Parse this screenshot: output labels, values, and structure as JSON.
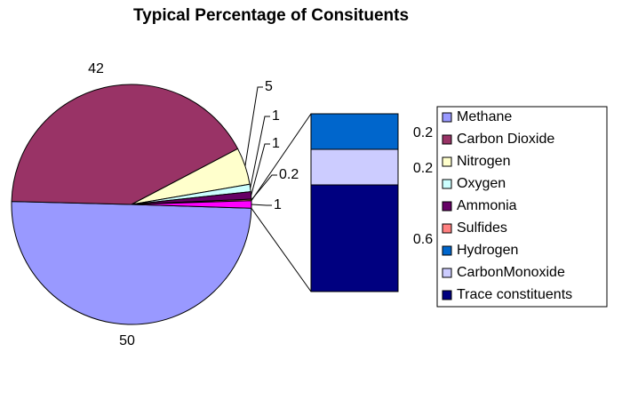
{
  "chart_data": {
    "type": "pie-of-bar",
    "title": "Typical Percentage of Consituents",
    "slices": [
      {
        "name": "Methane",
        "color": "#9999ff",
        "value": 50
      },
      {
        "name": "Carbon Dioxide",
        "color": "#993366",
        "value": 42
      },
      {
        "name": "Nitrogen",
        "color": "#ffffcc",
        "value": 5
      },
      {
        "name": "Oxygen",
        "color": "#ccffff",
        "value": 1
      },
      {
        "name": "Ammonia",
        "color": "#660066",
        "value": 1
      },
      {
        "name": "Sulfides",
        "color": "#ff8080",
        "value": 0.2
      }
    ],
    "other": {
      "color": "#ff00ff",
      "value": 1
    },
    "bar": [
      {
        "name": "Hydrogen",
        "color": "#0066cc",
        "value": 0.2
      },
      {
        "name": "CarbonMonoxide",
        "color": "#ccccff",
        "value": 0.2
      },
      {
        "name": "Trace constituents",
        "color": "#000080",
        "value": 0.6
      }
    ]
  }
}
